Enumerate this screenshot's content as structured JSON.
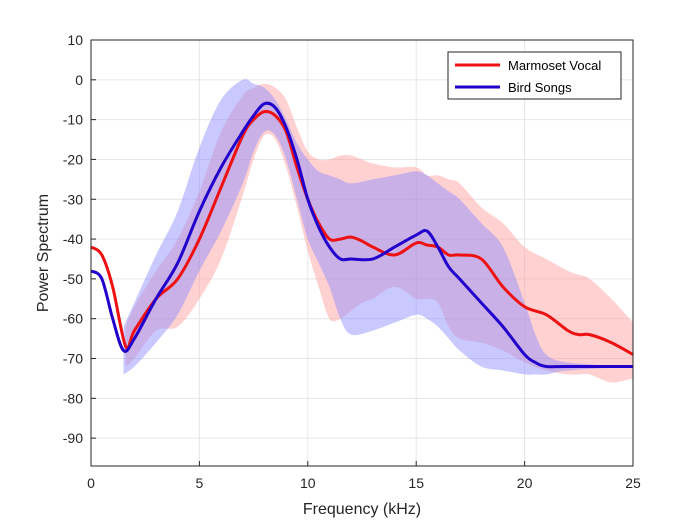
{
  "chart_data": {
    "type": "line",
    "xlabel": "Frequency (kHz)",
    "ylabel": "Power Spectrum",
    "xlim": [
      0,
      25
    ],
    "ylim": [
      -97,
      10
    ],
    "xticks": [
      "0",
      "5",
      "10",
      "15",
      "20",
      "25"
    ],
    "yticks": [
      "10",
      "0",
      "-10",
      "-20",
      "-30",
      "-40",
      "-50",
      "-60",
      "-70",
      "-80",
      "-90"
    ],
    "grid": true,
    "legend_position": "top-right",
    "series": [
      {
        "name": "Marmoset Vocal",
        "color": "#ee1111",
        "band_color": "#ff9999",
        "x": [
          0,
          0.5,
          1.0,
          1.6,
          2.0,
          3.0,
          4.0,
          5.0,
          6.0,
          7.0,
          7.5,
          8.0,
          8.5,
          9.0,
          9.5,
          10.0,
          10.5,
          11.0,
          11.5,
          12.0,
          12.5,
          13.0,
          14.0,
          15.0,
          15.5,
          16.0,
          16.5,
          17.0,
          18.0,
          19.0,
          20.0,
          21.0,
          22.0,
          22.5,
          23.0,
          24.0,
          25.0
        ],
        "y": [
          -42,
          -44,
          -52,
          -67,
          -63,
          -55,
          -50,
          -40,
          -27,
          -14,
          -10,
          -8,
          -9,
          -13,
          -22,
          -30,
          -36,
          -40,
          -40,
          -39.5,
          -40.5,
          -42,
          -44,
          -41,
          -41.5,
          -42,
          -44,
          -44,
          -45,
          -52,
          -57,
          -59,
          -63,
          -64,
          -64,
          -66,
          -69
        ],
        "upper": [
          null,
          null,
          null,
          -62,
          -57,
          -48,
          -40,
          -28,
          -13,
          -4,
          -2,
          -1,
          -2,
          -5,
          -12,
          -18,
          -20,
          -20,
          -19,
          -19,
          -20,
          -21,
          -22,
          -22,
          -24,
          -24,
          -25,
          -26,
          -32,
          -36,
          -42,
          -45,
          -48,
          -49,
          -50,
          -55,
          -61
        ],
        "lower": [
          null,
          null,
          null,
          -72,
          -70,
          -63,
          -62,
          -55,
          -45,
          -29,
          -20,
          -14,
          -15,
          -22,
          -32,
          -43,
          -52,
          -60,
          -60,
          -58,
          -56,
          -55,
          -52,
          -55,
          -55,
          -56,
          -62,
          -65,
          -66,
          -68,
          -71,
          -73,
          -74,
          -74,
          -74,
          -76,
          -75
        ]
      },
      {
        "name": "Bird Songs",
        "color": "#2200cc",
        "band_color": "#8888ff",
        "x": [
          0,
          0.5,
          1.0,
          1.5,
          2.0,
          3.0,
          4.0,
          5.0,
          6.0,
          7.0,
          7.5,
          8.0,
          8.5,
          9.0,
          9.5,
          10.0,
          10.5,
          11.0,
          11.5,
          12.0,
          13.0,
          14.0,
          15.0,
          15.5,
          16.0,
          16.5,
          17.0,
          18.0,
          19.0,
          20.0,
          20.5,
          21.0,
          22.0,
          25.0
        ],
        "y": [
          -48,
          -50,
          -60,
          -68,
          -65,
          -55,
          -46,
          -33,
          -22,
          -13,
          -9,
          -6,
          -7,
          -12,
          -20,
          -30,
          -37,
          -42,
          -45,
          -45,
          -45,
          -42,
          -39,
          -38,
          -42,
          -47,
          -50,
          -56,
          -62,
          -69,
          -71,
          -72,
          -72,
          -72
        ],
        "upper": [
          null,
          null,
          null,
          -62,
          -56,
          -44,
          -33,
          -17,
          -5,
          0,
          -1,
          -2,
          -5,
          -10,
          -16,
          -20,
          -23,
          -24,
          -25,
          -26,
          -25,
          -24,
          -23,
          -24,
          -26,
          -28,
          -30,
          -36,
          -42,
          -56,
          -64,
          -69,
          -71,
          -72
        ],
        "lower": [
          null,
          null,
          null,
          -74,
          -72,
          -66,
          -59,
          -48,
          -38,
          -26,
          -18,
          -13,
          -14,
          -20,
          -30,
          -40,
          -46,
          -52,
          -60,
          -64,
          -63,
          -61,
          -59,
          -60,
          -62,
          -65,
          -68,
          -72,
          -73,
          -74,
          -74,
          -74,
          -73,
          -72
        ]
      }
    ]
  }
}
